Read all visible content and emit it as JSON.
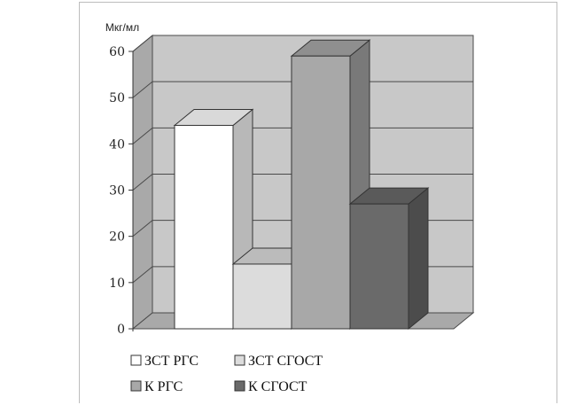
{
  "chart_data": {
    "type": "bar",
    "style": "3d",
    "ylabel": "Мкг/мл",
    "ylim": [
      0,
      60
    ],
    "yticks": [
      "0",
      "10",
      "20",
      "30",
      "40",
      "50",
      "60"
    ],
    "grid": true,
    "legend_position": "bottom",
    "series": [
      {
        "name": "ЗСТ РГС",
        "value": 44,
        "color": "#ffffff"
      },
      {
        "name": "ЗСТ СГОСТ",
        "value": 14,
        "color": "#dcdcdc"
      },
      {
        "name": "К РГС",
        "value": 59,
        "color": "#a8a8a8"
      },
      {
        "name": "К СГОСТ",
        "value": 27,
        "color": "#6a6a6a"
      }
    ],
    "colors": {
      "back_wall": "#c8c8c8",
      "side_wall": "#a9a9a9",
      "floor": "#a9a9a9"
    }
  }
}
